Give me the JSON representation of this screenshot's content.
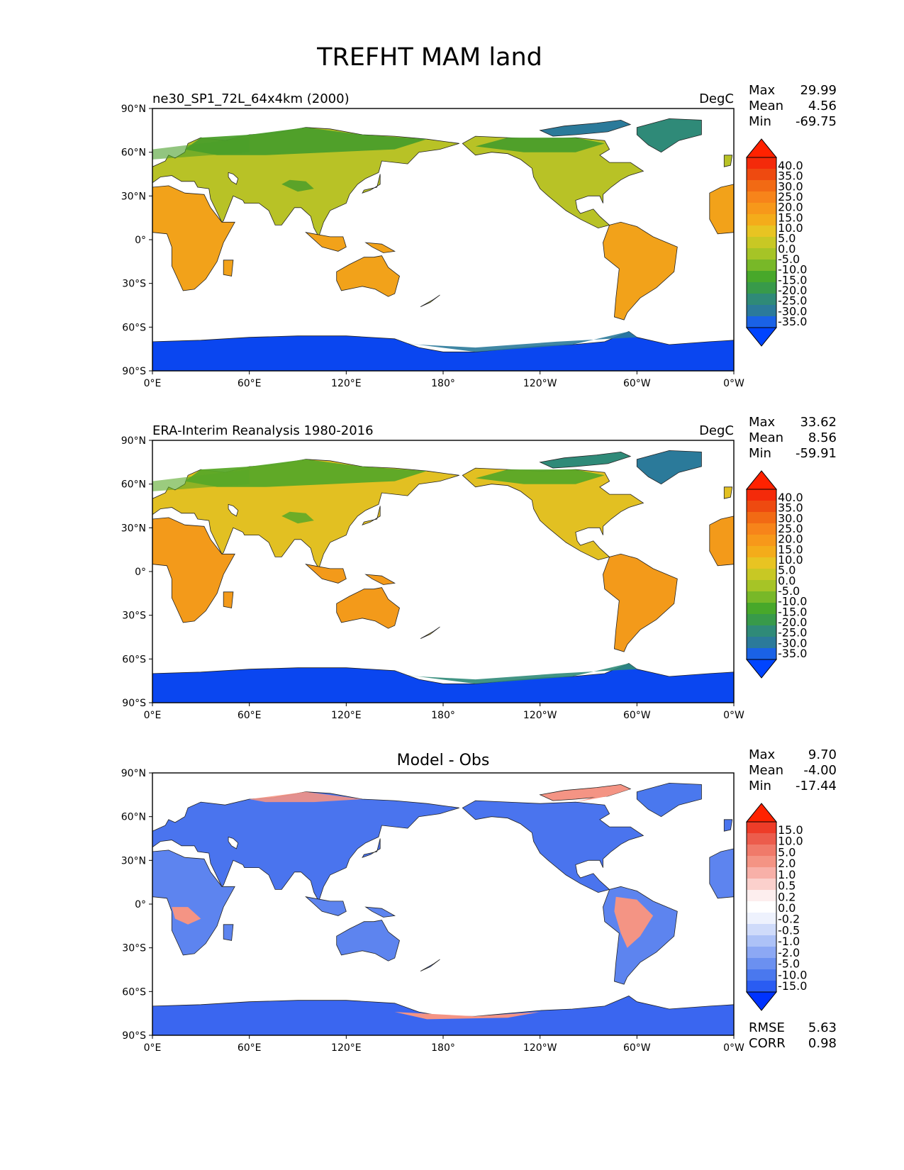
{
  "title": "TREFHT MAM land",
  "colors": {
    "ocean": "#ffffff",
    "coast": "#222222",
    "temp_scale": [
      "#0044ff",
      "#1a62e6",
      "#2b7a9a",
      "#2f8a78",
      "#389a4a",
      "#48a82a",
      "#78b828",
      "#a6c426",
      "#c8c824",
      "#e8c422",
      "#f4ac1a",
      "#f7981a",
      "#f7841a",
      "#f26a14",
      "#ee4a10",
      "#f42a0a",
      "#ff2200"
    ],
    "diff_scale": [
      "#0033ff",
      "#2a5cf2",
      "#4a78ee",
      "#6b90f0",
      "#8ca8f4",
      "#adc2f7",
      "#cfdbfa",
      "#eef2fd",
      "#ffffff",
      "#fdeeee",
      "#fbd0cc",
      "#f8b0a8",
      "#f49484",
      "#f07a6a",
      "#ec5c4c",
      "#ee3c28",
      "#ff2200"
    ]
  },
  "panels": [
    {
      "id": "model",
      "left_title": "ne30_SP1_72L_64x4km (2000)",
      "center_title": "",
      "units": "DegC",
      "stats": [
        {
          "label": "Max",
          "value": "29.99"
        },
        {
          "label": "Mean",
          "value": "4.56"
        },
        {
          "label": "Min",
          "value": "-69.75"
        }
      ],
      "colorbar_labels": [
        "40.0",
        "35.0",
        "30.0",
        "25.0",
        "20.0",
        "15.0",
        "10.0",
        "5.0",
        "0.0",
        "-5.0",
        "-10.0",
        "-15.0",
        "-20.0",
        "-25.0",
        "-30.0",
        "-35.0"
      ],
      "palette": "temp",
      "fields": {
        "land_hot": "#f2a21a",
        "land_mid": "#b8c226",
        "land_cold": "#4a9e2a",
        "polar": "#0a46f0",
        "greenland": "#2f8a78",
        "antarctic_edge": "#2b7a9a"
      },
      "bottom_stats": []
    },
    {
      "id": "obs",
      "left_title": "ERA-Interim Reanalysis 1980-2016",
      "center_title": "",
      "units": "DegC",
      "stats": [
        {
          "label": "Max",
          "value": "33.62"
        },
        {
          "label": "Mean",
          "value": "8.56"
        },
        {
          "label": "Min",
          "value": "-59.91"
        }
      ],
      "colorbar_labels": [
        "40.0",
        "35.0",
        "30.0",
        "25.0",
        "20.0",
        "15.0",
        "10.0",
        "5.0",
        "0.0",
        "-5.0",
        "-10.0",
        "-15.0",
        "-20.0",
        "-25.0",
        "-30.0",
        "-35.0"
      ],
      "palette": "temp",
      "fields": {
        "land_hot": "#f39a1a",
        "land_mid": "#e2c022",
        "land_cold": "#58a828",
        "polar": "#0a46f0",
        "greenland": "#2b7a9a",
        "antarctic_edge": "#2f8a78"
      },
      "bottom_stats": []
    },
    {
      "id": "diff",
      "left_title": "",
      "center_title": "Model - Obs",
      "units": "",
      "stats": [
        {
          "label": "Max",
          "value": "9.70"
        },
        {
          "label": "Mean",
          "value": "-4.00"
        },
        {
          "label": "Min",
          "value": "-17.44"
        }
      ],
      "colorbar_labels": [
        "15.0",
        "10.0",
        "5.0",
        "2.0",
        "1.0",
        "0.5",
        "0.2",
        "0.0",
        "-0.2",
        "-0.5",
        "-1.0",
        "-2.0",
        "-5.0",
        "-10.0",
        "-15.0"
      ],
      "palette": "diff",
      "fields": {
        "land_hot": "#5d84ef",
        "land_mid": "#4a74ee",
        "land_cold": "#4a74ee",
        "polar": "#3a66f0",
        "greenland": "#4a78ee",
        "antarctic_edge": "#f49484",
        "warm_patch": "#f49484"
      },
      "bottom_stats": [
        {
          "label": "RMSE",
          "value": "5.63"
        },
        {
          "label": "CORR",
          "value": "0.98"
        }
      ]
    }
  ],
  "axes": {
    "lat_ticks": [
      "90°N",
      "60°N",
      "30°N",
      "0°",
      "30°S",
      "60°S",
      "90°S"
    ],
    "lon_ticks": [
      "0°E",
      "60°E",
      "120°E",
      "180°",
      "120°W",
      "60°W",
      "0°W"
    ]
  }
}
